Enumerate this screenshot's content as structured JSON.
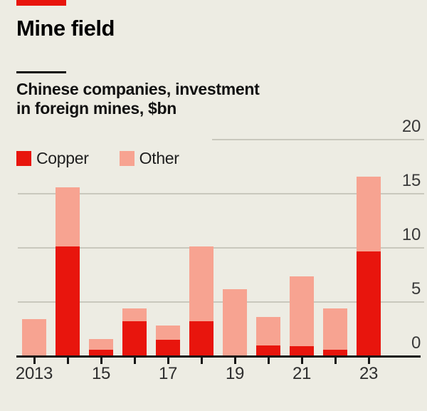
{
  "header": {
    "title": "Mine field",
    "subtitle_line1": "Chinese companies, investment",
    "subtitle_line2": "in foreign mines, $bn",
    "tag_color": "#e8150d"
  },
  "legend": [
    {
      "label": "Copper",
      "color": "#e8150d"
    },
    {
      "label": "Other",
      "color": "#f7a391"
    }
  ],
  "colors": {
    "background": "#edece3",
    "copper": "#e8150d",
    "other": "#f7a391",
    "gridline": "#c9c8bd",
    "axis": "#151515"
  },
  "chart_data": {
    "type": "bar",
    "stacked": true,
    "title": "Mine field",
    "subtitle": "Chinese companies, investment in foreign mines, $bn",
    "unit": "$bn",
    "categories": [
      2013,
      2014,
      2015,
      2016,
      2017,
      2018,
      2019,
      2020,
      2021,
      2022,
      2023
    ],
    "xtick_labels": [
      "2013",
      "",
      "15",
      "",
      "17",
      "",
      "19",
      "",
      "21",
      "",
      "23"
    ],
    "series": [
      {
        "name": "Copper",
        "color": "#e8150d",
        "values": [
          0,
          10.1,
          0.6,
          3.2,
          1.5,
          3.2,
          0,
          1.0,
          0.9,
          0.6,
          9.7
        ]
      },
      {
        "name": "Other",
        "color": "#f7a391",
        "values": [
          3.4,
          5.5,
          1.0,
          1.2,
          1.3,
          6.9,
          6.2,
          2.6,
          6.5,
          3.8,
          6.9
        ]
      }
    ],
    "totals": [
      3.4,
      15.6,
      1.6,
      4.4,
      2.8,
      10.1,
      6.2,
      3.6,
      7.4,
      4.4,
      16.6
    ],
    "ylim": [
      0,
      20
    ],
    "yticks": [
      0,
      5,
      10,
      15,
      20
    ],
    "ytick_side": "right",
    "grid": "horizontal",
    "legend_position": "top-left"
  }
}
